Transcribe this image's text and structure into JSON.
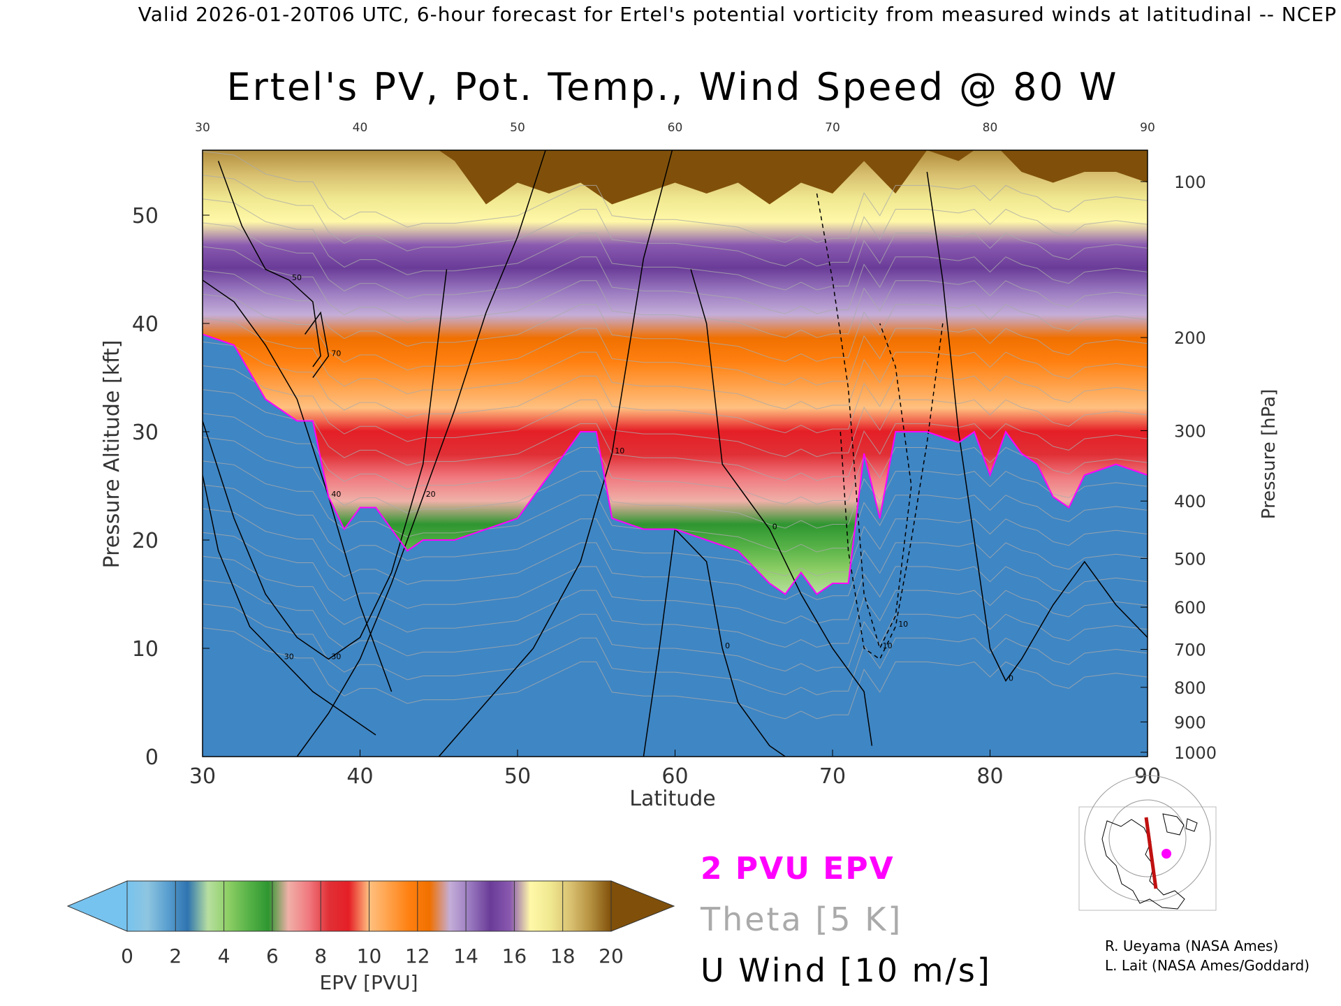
{
  "header": {
    "validity_line": "Valid 2026-01-20T06 UTC, 6-hour forecast for Ertel's potential vorticity from measured winds at latitudinal -- NCEP"
  },
  "chart_data": {
    "type": "heatmap",
    "title": "Ertel's PV, Pot. Temp., Wind Speed @ 80 W",
    "xlabel": "Latitude",
    "ylabel_left": "Pressure Altitude [kft]",
    "ylabel_right": "Pressure [hPa]",
    "xlim": [
      30,
      90
    ],
    "ylim": [
      0,
      56
    ],
    "x_ticks": [
      "30",
      "40",
      "50",
      "60",
      "70",
      "80",
      "90"
    ],
    "y_ticks_left": [
      "0",
      "10",
      "20",
      "30",
      "40",
      "50"
    ],
    "y_ticks_left_values": [
      0,
      10,
      20,
      30,
      40,
      50
    ],
    "y_ticks_right": [
      "100",
      "200",
      "300",
      "400",
      "500",
      "600",
      "700",
      "800",
      "900",
      "1000"
    ],
    "y_ticks_right_kft": [
      53.1,
      38.7,
      30.1,
      23.6,
      18.3,
      13.8,
      9.9,
      6.4,
      3.2,
      0.4
    ],
    "pv_2pvu_boundary": {
      "lat": [
        30,
        32,
        34,
        36,
        37,
        38,
        39,
        40,
        41,
        42,
        43,
        44,
        46,
        48,
        50,
        52,
        54,
        55,
        56,
        58,
        60,
        62,
        64,
        66,
        67,
        68,
        69,
        70,
        71,
        72,
        73,
        74,
        76,
        78,
        79,
        80,
        81,
        82,
        83,
        84,
        85,
        86,
        88,
        90
      ],
      "kft": [
        39,
        38,
        33,
        31,
        31,
        24,
        21,
        23,
        23,
        21,
        19,
        20,
        20,
        21,
        22,
        26,
        30,
        30,
        22,
        21,
        21,
        20,
        19,
        16,
        15,
        17,
        15,
        16,
        16,
        28,
        22,
        30,
        30,
        29,
        30,
        26,
        30,
        28,
        27,
        24,
        23,
        26,
        27,
        26
      ]
    },
    "upper_brown_boundary": {
      "lat": [
        30,
        32,
        34,
        36,
        38,
        40,
        42,
        44,
        46,
        48,
        50,
        52,
        54,
        56,
        58,
        60,
        62,
        64,
        66,
        68,
        70,
        72,
        74,
        76,
        78,
        80,
        82,
        84,
        86,
        88,
        90
      ],
      "kft": [
        57,
        57,
        57,
        57,
        57,
        57,
        57,
        57,
        55,
        51,
        53,
        52,
        53,
        51,
        52,
        53,
        52,
        53,
        51,
        53,
        52,
        55,
        52,
        56,
        55,
        57,
        54,
        53,
        54,
        54,
        53
      ]
    },
    "wind_contours": [
      {
        "label": "50",
        "lat": [
          31,
          32.5,
          34,
          35.5,
          37,
          37.5,
          37
        ],
        "kft": [
          55,
          49,
          45,
          44,
          42,
          37,
          36
        ]
      },
      {
        "label": "70",
        "lat": [
          36.5,
          37.5,
          38,
          37
        ],
        "kft": [
          39,
          41,
          37,
          35
        ]
      },
      {
        "label": "40",
        "lat": [
          30,
          32,
          34,
          36,
          38,
          40,
          41,
          42
        ],
        "kft": [
          44,
          42,
          38,
          33,
          24,
          14,
          10,
          6
        ]
      },
      {
        "label": "30",
        "lat": [
          30,
          32,
          34,
          36,
          38,
          40,
          42,
          44,
          45.5
        ],
        "kft": [
          31,
          22,
          15,
          11,
          9,
          11,
          17,
          27,
          45
        ]
      },
      {
        "label": "30",
        "lat": [
          30,
          31,
          33,
          35,
          37,
          39,
          41
        ],
        "kft": [
          26,
          19,
          12,
          9,
          6,
          4,
          2
        ]
      },
      {
        "label": "20",
        "lat": [
          36,
          38,
          40,
          42,
          44,
          46,
          48,
          50,
          52
        ],
        "kft": [
          0,
          4,
          9,
          16,
          24,
          32,
          41,
          48,
          57
        ]
      },
      {
        "label": "10",
        "lat": [
          45,
          48,
          51,
          54,
          56,
          57,
          58,
          60
        ],
        "kft": [
          0,
          5,
          10,
          18,
          28,
          37,
          46,
          57
        ]
      },
      {
        "label": "0",
        "lat": [
          58,
          59,
          60,
          62,
          63,
          64,
          66,
          67
        ],
        "kft": [
          0,
          10,
          21,
          18,
          10,
          5,
          1,
          0
        ]
      },
      {
        "label": "0",
        "lat": [
          61,
          62,
          63,
          64,
          66,
          68,
          70,
          72,
          72.5
        ],
        "kft": [
          45,
          40,
          27,
          25,
          21,
          15,
          10,
          6,
          1
        ]
      },
      {
        "label": "10",
        "lat": [
          69,
          70,
          71,
          72,
          73,
          74,
          75,
          74,
          73
        ],
        "kft": [
          52,
          44,
          34,
          15,
          10,
          13,
          25,
          36,
          40
        ]
      },
      {
        "label": "10",
        "lat": [
          70.5,
          71,
          72,
          73,
          74,
          75,
          76,
          77
        ],
        "kft": [
          30,
          19,
          10,
          9,
          12,
          20,
          29,
          40
        ]
      },
      {
        "label": "0",
        "lat": [
          76,
          77,
          78,
          79,
          80,
          81,
          82,
          84,
          86,
          88,
          90
        ],
        "kft": [
          54,
          44,
          30,
          20,
          10,
          7,
          9,
          14,
          18,
          14,
          11
        ]
      }
    ],
    "colorbar": {
      "label": "EPV [PVU]",
      "ticks": [
        "0",
        "2",
        "4",
        "6",
        "8",
        "10",
        "12",
        "14",
        "16",
        "18",
        "20"
      ],
      "range": [
        0,
        20
      ],
      "stops": [
        "#77c3ef",
        "#8ec5e0",
        "#5aa0d0",
        "#2f74b0",
        "#b7dfa0",
        "#8fcf66",
        "#58b348",
        "#2e9630",
        "#f0b0a8",
        "#f07a80",
        "#e03036",
        "#e51f26",
        "#ffc080",
        "#ffa048",
        "#ff8010",
        "#f07000",
        "#c4aed8",
        "#9a7ac0",
        "#6a3c98",
        "#8a5ab0",
        "#fff8a8",
        "#f0e890",
        "#d8c070",
        "#b49040",
        "#80500a"
      ]
    },
    "legend": {
      "pv_label": "2 PVU EPV",
      "theta_label": "Theta [5 K]",
      "wind_label": "U Wind [10 m/s]"
    },
    "colors": {
      "pv_boundary": "#ff00ff",
      "theta": "#aaaaaa",
      "wind": "#000000",
      "map_track": "#c01010"
    }
  },
  "credits": {
    "line1": "R. Ueyama (NASA Ames)",
    "line2": "L. Lait (NASA Ames/Goddard)"
  }
}
